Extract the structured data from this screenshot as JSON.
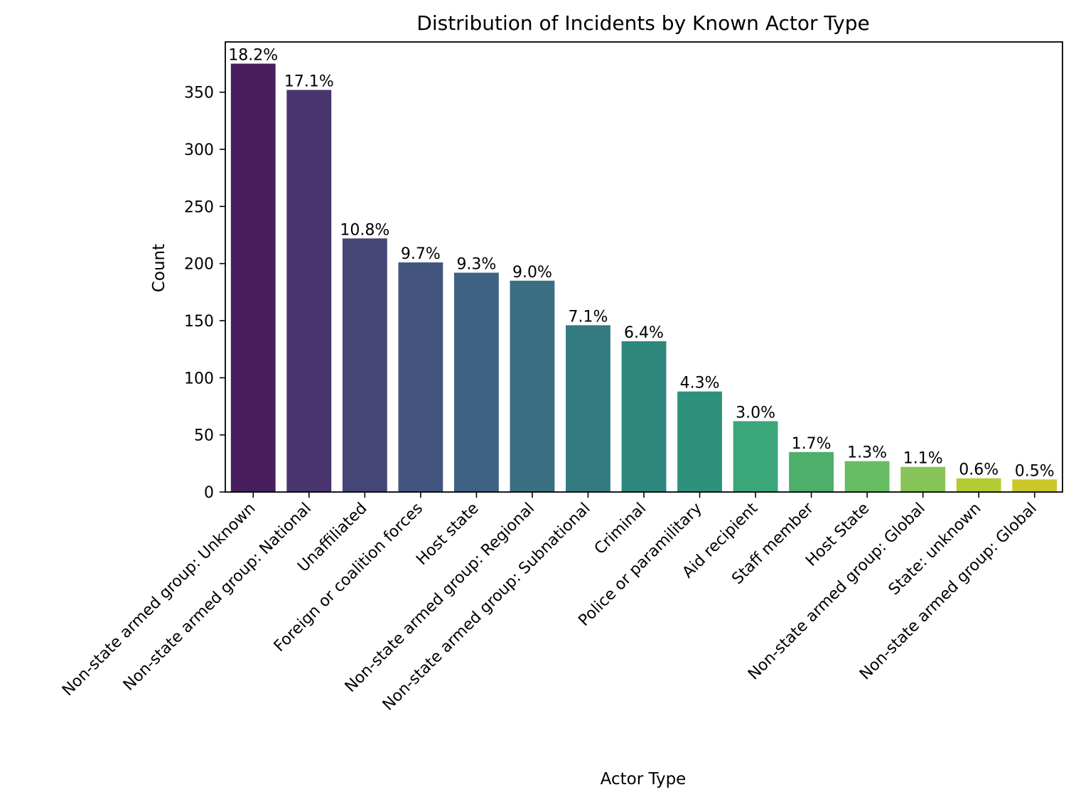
{
  "chart_data": {
    "type": "bar",
    "title": "Distribution of Incidents by Known Actor Type",
    "xlabel": "Actor Type",
    "ylabel": "Count",
    "ylim": [
      0,
      394
    ],
    "yticks": [
      0,
      50,
      100,
      150,
      200,
      250,
      300,
      350
    ],
    "grid": false,
    "legend": "none",
    "categories": [
      "Non-state armed group: Unknown",
      "Non-state armed group: National",
      "Unaffiliated",
      "Foreign or coalition forces",
      "Host state",
      "Non-state armed group: Regional",
      "Non-state armed group: Subnational",
      "Criminal",
      "Police or paramilitary",
      "Aid recipient",
      "Staff member",
      "Host State",
      "Non-state armed group: Global",
      "State: unknown",
      "Non-state armed group: Global"
    ],
    "values": [
      375,
      352,
      222,
      201,
      192,
      185,
      146,
      132,
      88,
      62,
      35,
      27,
      22,
      12,
      11
    ],
    "data_labels": [
      "18.2%",
      "17.1%",
      "10.8%",
      "9.7%",
      "9.3%",
      "9.0%",
      "7.1%",
      "6.4%",
      "4.3%",
      "3.0%",
      "1.7%",
      "1.3%",
      "1.1%",
      "0.6%",
      "0.5%"
    ],
    "colors": [
      "#481e5f",
      "#48346f",
      "#454677",
      "#43557f",
      "#3d6283",
      "#3a6f82",
      "#337b80",
      "#2e877d",
      "#2f917b",
      "#3aa67a",
      "#4eae6c",
      "#68bc64",
      "#87c457",
      "#b4cb34",
      "#c9c72a"
    ]
  }
}
